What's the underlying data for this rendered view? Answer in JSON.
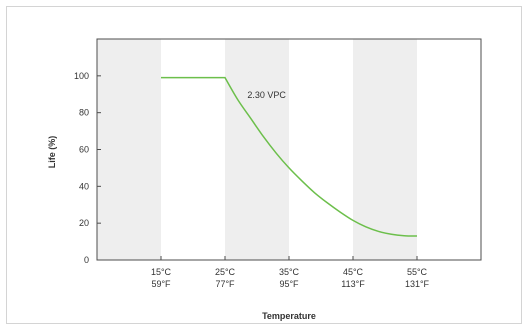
{
  "chart_data": {
    "type": "line",
    "title": "",
    "xlabel": "Temperature",
    "ylabel": "Life (%)",
    "xlim": [
      5,
      65
    ],
    "ylim": [
      0,
      120
    ],
    "yticks": [
      0,
      20,
      40,
      60,
      80,
      100
    ],
    "xticks": [
      {
        "value": 15,
        "celsius": "15°C",
        "fahrenheit": "59°F"
      },
      {
        "value": 25,
        "celsius": "25°C",
        "fahrenheit": "77°F"
      },
      {
        "value": 35,
        "celsius": "35°C",
        "fahrenheit": "95°F"
      },
      {
        "value": 45,
        "celsius": "45°C",
        "fahrenheit": "113°F"
      },
      {
        "value": 55,
        "celsius": "55°C",
        "fahrenheit": "131°F"
      }
    ],
    "shaded_bands": [
      [
        5,
        15
      ],
      [
        25,
        35
      ],
      [
        45,
        55
      ]
    ],
    "series": [
      {
        "name": "2.30 VPC",
        "color": "#6cbf4b",
        "x": [
          15,
          25,
          27,
          29,
          31,
          33,
          35,
          37,
          39,
          41,
          43,
          45,
          47,
          49,
          51,
          53,
          55
        ],
        "y": [
          99,
          99,
          87,
          77,
          67,
          58,
          50,
          43,
          36.5,
          31,
          26,
          21.5,
          18,
          15.5,
          14,
          13.2,
          13
        ]
      }
    ],
    "annotation": {
      "text": "2.30 VPC",
      "x": 28.5,
      "y": 88
    }
  }
}
